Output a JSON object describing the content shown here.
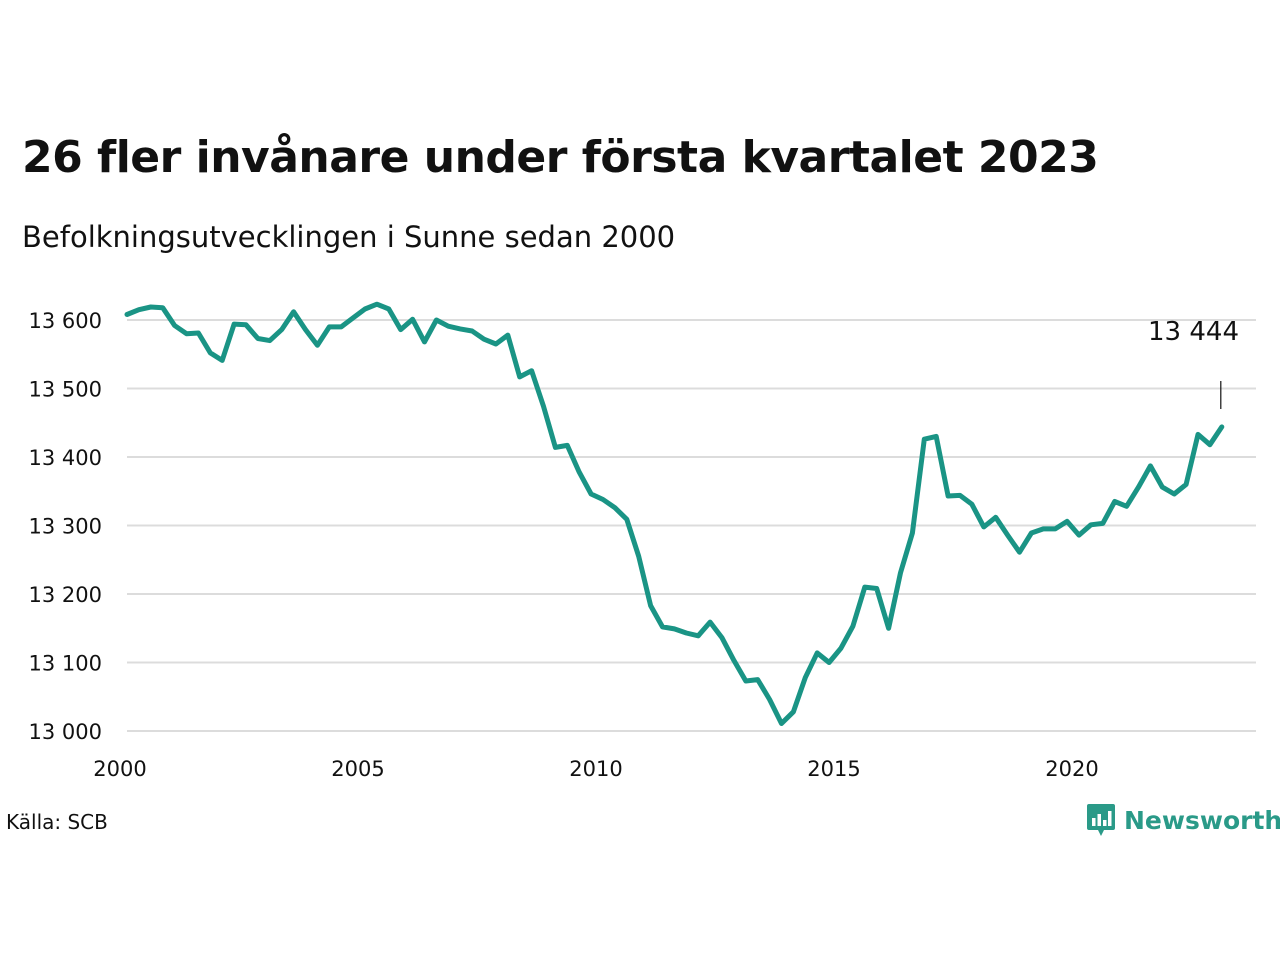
{
  "chart_data": {
    "type": "line",
    "title": "26 fler invånare under första kvartalet 2023",
    "subtitle": "Befolkningsutvecklingen i Sunne sedan 2000",
    "source": "Källa: SCB",
    "brand": "Newsworthy",
    "xlabel": "",
    "ylabel": "",
    "xlim": [
      2000,
      2024
    ],
    "ylim": [
      13000,
      13600
    ],
    "x_ticks": [
      2000,
      2005,
      2010,
      2015,
      2020
    ],
    "x_tick_labels": [
      "2000",
      "2005",
      "2010",
      "2015",
      "2020"
    ],
    "y_ticks": [
      13000,
      13100,
      13200,
      13300,
      13400,
      13500,
      13600
    ],
    "y_tick_labels": [
      "13 000",
      "13 100",
      "13 200",
      "13 300",
      "13 400",
      "13 500",
      "13 600"
    ],
    "grid": true,
    "legend": "none",
    "color": "#1a9485",
    "annotation": {
      "x": 2023.0,
      "text": "13 444"
    },
    "x_start": "2000 Q1",
    "x_step": "quarter",
    "values": [
      13608,
      13615,
      13619,
      13618,
      13592,
      13580,
      13581,
      13552,
      13541,
      13594,
      13593,
      13573,
      13570,
      13586,
      13612,
      13586,
      13563,
      13590,
      13590,
      13603,
      13616,
      13623,
      13616,
      13586,
      13601,
      13568,
      13600,
      13591,
      13587,
      13584,
      13572,
      13565,
      13578,
      13517,
      13526,
      13474,
      13414,
      13417,
      13378,
      13346,
      13338,
      13326,
      13309,
      13255,
      13183,
      13152,
      13149,
      13143,
      13139,
      13159,
      13136,
      13103,
      13073,
      13075,
      13046,
      13011,
      13028,
      13078,
      13114,
      13100,
      13121,
      13153,
      13210,
      13208,
      13150,
      13231,
      13289,
      13426,
      13430,
      13343,
      13344,
      13331,
      13298,
      13312,
      13286,
      13261,
      13289,
      13295,
      13295,
      13306,
      13286,
      13301,
      13303,
      13335,
      13328,
      13356,
      13387,
      13356,
      13346,
      13360,
      13433,
      13418,
      13444
    ]
  }
}
